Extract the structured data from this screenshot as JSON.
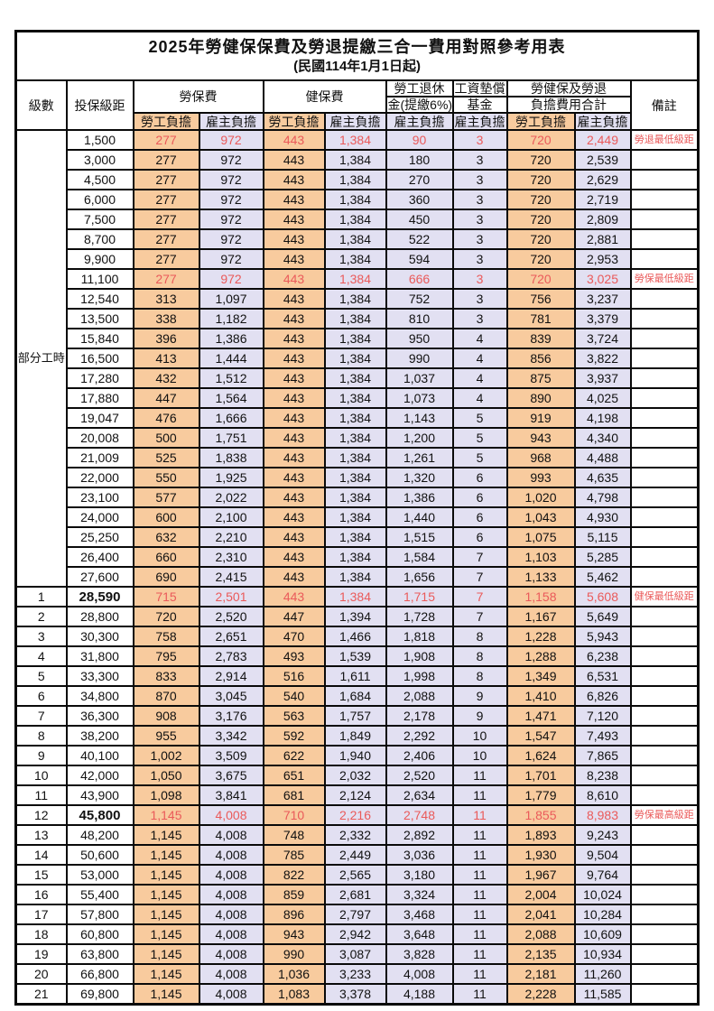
{
  "title": "2025年勞健保保費及勞退提繳三合一費用對照參考用表",
  "subtitle": "(民國114年1月1日起)",
  "colors": {
    "emp_bg": "#F8CB9E",
    "er_bg": "#E2E0F2",
    "red": "#EA5A5A",
    "border": "#0A0A0A"
  },
  "header": {
    "level": "級數",
    "bracket": "投保級距",
    "labor": "勞保費",
    "health": "健保費",
    "pension_line1": "勞工退休",
    "pension_line2": "金(提繳6%)",
    "wage_fund_line1": "工資墊償",
    "wage_fund_line2": "基金",
    "total_line1": "勞健保及勞退",
    "total_line2": "負擔費用合計",
    "employee": "勞工負擔",
    "employer": "雇主負擔",
    "note": "備註"
  },
  "part_time_label": "部分工時",
  "part_time_row_count": 23,
  "rows": [
    {
      "level": "",
      "bracket": "1,500",
      "v": [
        "277",
        "972",
        "443",
        "1,384",
        "90",
        "3",
        "720",
        "2,449"
      ],
      "note": "勞退最低級距",
      "red": true
    },
    {
      "level": "",
      "bracket": "3,000",
      "v": [
        "277",
        "972",
        "443",
        "1,384",
        "180",
        "3",
        "720",
        "2,539"
      ],
      "note": "",
      "red": false
    },
    {
      "level": "",
      "bracket": "4,500",
      "v": [
        "277",
        "972",
        "443",
        "1,384",
        "270",
        "3",
        "720",
        "2,629"
      ],
      "note": "",
      "red": false
    },
    {
      "level": "",
      "bracket": "6,000",
      "v": [
        "277",
        "972",
        "443",
        "1,384",
        "360",
        "3",
        "720",
        "2,719"
      ],
      "note": "",
      "red": false
    },
    {
      "level": "",
      "bracket": "7,500",
      "v": [
        "277",
        "972",
        "443",
        "1,384",
        "450",
        "3",
        "720",
        "2,809"
      ],
      "note": "",
      "red": false
    },
    {
      "level": "",
      "bracket": "8,700",
      "v": [
        "277",
        "972",
        "443",
        "1,384",
        "522",
        "3",
        "720",
        "2,881"
      ],
      "note": "",
      "red": false
    },
    {
      "level": "",
      "bracket": "9,900",
      "v": [
        "277",
        "972",
        "443",
        "1,384",
        "594",
        "3",
        "720",
        "2,953"
      ],
      "note": "",
      "red": false
    },
    {
      "level": "",
      "bracket": "11,100",
      "v": [
        "277",
        "972",
        "443",
        "1,384",
        "666",
        "3",
        "720",
        "3,025"
      ],
      "note": "勞保最低級距",
      "red": true
    },
    {
      "level": "",
      "bracket": "12,540",
      "v": [
        "313",
        "1,097",
        "443",
        "1,384",
        "752",
        "3",
        "756",
        "3,237"
      ],
      "note": "",
      "red": false
    },
    {
      "level": "",
      "bracket": "13,500",
      "v": [
        "338",
        "1,182",
        "443",
        "1,384",
        "810",
        "3",
        "781",
        "3,379"
      ],
      "note": "",
      "red": false
    },
    {
      "level": "",
      "bracket": "15,840",
      "v": [
        "396",
        "1,386",
        "443",
        "1,384",
        "950",
        "4",
        "839",
        "3,724"
      ],
      "note": "",
      "red": false
    },
    {
      "level": "",
      "bracket": "16,500",
      "v": [
        "413",
        "1,444",
        "443",
        "1,384",
        "990",
        "4",
        "856",
        "3,822"
      ],
      "note": "",
      "red": false
    },
    {
      "level": "",
      "bracket": "17,280",
      "v": [
        "432",
        "1,512",
        "443",
        "1,384",
        "1,037",
        "4",
        "875",
        "3,937"
      ],
      "note": "",
      "red": false
    },
    {
      "level": "",
      "bracket": "17,880",
      "v": [
        "447",
        "1,564",
        "443",
        "1,384",
        "1,073",
        "4",
        "890",
        "4,025"
      ],
      "note": "",
      "red": false
    },
    {
      "level": "",
      "bracket": "19,047",
      "v": [
        "476",
        "1,666",
        "443",
        "1,384",
        "1,143",
        "5",
        "919",
        "4,198"
      ],
      "note": "",
      "red": false
    },
    {
      "level": "",
      "bracket": "20,008",
      "v": [
        "500",
        "1,751",
        "443",
        "1,384",
        "1,200",
        "5",
        "943",
        "4,340"
      ],
      "note": "",
      "red": false
    },
    {
      "level": "",
      "bracket": "21,009",
      "v": [
        "525",
        "1,838",
        "443",
        "1,384",
        "1,261",
        "5",
        "968",
        "4,488"
      ],
      "note": "",
      "red": false
    },
    {
      "level": "",
      "bracket": "22,000",
      "v": [
        "550",
        "1,925",
        "443",
        "1,384",
        "1,320",
        "6",
        "993",
        "4,635"
      ],
      "note": "",
      "red": false
    },
    {
      "level": "",
      "bracket": "23,100",
      "v": [
        "577",
        "2,022",
        "443",
        "1,384",
        "1,386",
        "6",
        "1,020",
        "4,798"
      ],
      "note": "",
      "red": false
    },
    {
      "level": "",
      "bracket": "24,000",
      "v": [
        "600",
        "2,100",
        "443",
        "1,384",
        "1,440",
        "6",
        "1,043",
        "4,930"
      ],
      "note": "",
      "red": false
    },
    {
      "level": "",
      "bracket": "25,250",
      "v": [
        "632",
        "2,210",
        "443",
        "1,384",
        "1,515",
        "6",
        "1,075",
        "5,115"
      ],
      "note": "",
      "red": false
    },
    {
      "level": "",
      "bracket": "26,400",
      "v": [
        "660",
        "2,310",
        "443",
        "1,384",
        "1,584",
        "7",
        "1,103",
        "5,285"
      ],
      "note": "",
      "red": false
    },
    {
      "level": "",
      "bracket": "27,600",
      "v": [
        "690",
        "2,415",
        "443",
        "1,384",
        "1,656",
        "7",
        "1,133",
        "5,462"
      ],
      "note": "",
      "red": false
    },
    {
      "level": "1",
      "bracket": "28,590",
      "v": [
        "715",
        "2,501",
        "443",
        "1,384",
        "1,715",
        "7",
        "1,158",
        "5,608"
      ],
      "note": "健保最低級距",
      "red": true,
      "em": true
    },
    {
      "level": "2",
      "bracket": "28,800",
      "v": [
        "720",
        "2,520",
        "447",
        "1,394",
        "1,728",
        "7",
        "1,167",
        "5,649"
      ],
      "note": "",
      "red": false
    },
    {
      "level": "3",
      "bracket": "30,300",
      "v": [
        "758",
        "2,651",
        "470",
        "1,466",
        "1,818",
        "8",
        "1,228",
        "5,943"
      ],
      "note": "",
      "red": false
    },
    {
      "level": "4",
      "bracket": "31,800",
      "v": [
        "795",
        "2,783",
        "493",
        "1,539",
        "1,908",
        "8",
        "1,288",
        "6,238"
      ],
      "note": "",
      "red": false
    },
    {
      "level": "5",
      "bracket": "33,300",
      "v": [
        "833",
        "2,914",
        "516",
        "1,611",
        "1,998",
        "8",
        "1,349",
        "6,531"
      ],
      "note": "",
      "red": false
    },
    {
      "level": "6",
      "bracket": "34,800",
      "v": [
        "870",
        "3,045",
        "540",
        "1,684",
        "2,088",
        "9",
        "1,410",
        "6,826"
      ],
      "note": "",
      "red": false
    },
    {
      "level": "7",
      "bracket": "36,300",
      "v": [
        "908",
        "3,176",
        "563",
        "1,757",
        "2,178",
        "9",
        "1,471",
        "7,120"
      ],
      "note": "",
      "red": false
    },
    {
      "level": "8",
      "bracket": "38,200",
      "v": [
        "955",
        "3,342",
        "592",
        "1,849",
        "2,292",
        "10",
        "1,547",
        "7,493"
      ],
      "note": "",
      "red": false
    },
    {
      "level": "9",
      "bracket": "40,100",
      "v": [
        "1,002",
        "3,509",
        "622",
        "1,940",
        "2,406",
        "10",
        "1,624",
        "7,865"
      ],
      "note": "",
      "red": false
    },
    {
      "level": "10",
      "bracket": "42,000",
      "v": [
        "1,050",
        "3,675",
        "651",
        "2,032",
        "2,520",
        "11",
        "1,701",
        "8,238"
      ],
      "note": "",
      "red": false
    },
    {
      "level": "11",
      "bracket": "43,900",
      "v": [
        "1,098",
        "3,841",
        "681",
        "2,124",
        "2,634",
        "11",
        "1,779",
        "8,610"
      ],
      "note": "",
      "red": false
    },
    {
      "level": "12",
      "bracket": "45,800",
      "v": [
        "1,145",
        "4,008",
        "710",
        "2,216",
        "2,748",
        "11",
        "1,855",
        "8,983"
      ],
      "note": "勞保最高級距",
      "red": true,
      "em": true
    },
    {
      "level": "13",
      "bracket": "48,200",
      "v": [
        "1,145",
        "4,008",
        "748",
        "2,332",
        "2,892",
        "11",
        "1,893",
        "9,243"
      ],
      "note": "",
      "red": false
    },
    {
      "level": "14",
      "bracket": "50,600",
      "v": [
        "1,145",
        "4,008",
        "785",
        "2,449",
        "3,036",
        "11",
        "1,930",
        "9,504"
      ],
      "note": "",
      "red": false
    },
    {
      "level": "15",
      "bracket": "53,000",
      "v": [
        "1,145",
        "4,008",
        "822",
        "2,565",
        "3,180",
        "11",
        "1,967",
        "9,764"
      ],
      "note": "",
      "red": false
    },
    {
      "level": "16",
      "bracket": "55,400",
      "v": [
        "1,145",
        "4,008",
        "859",
        "2,681",
        "3,324",
        "11",
        "2,004",
        "10,024"
      ],
      "note": "",
      "red": false
    },
    {
      "level": "17",
      "bracket": "57,800",
      "v": [
        "1,145",
        "4,008",
        "896",
        "2,797",
        "3,468",
        "11",
        "2,041",
        "10,284"
      ],
      "note": "",
      "red": false
    },
    {
      "level": "18",
      "bracket": "60,800",
      "v": [
        "1,145",
        "4,008",
        "943",
        "2,942",
        "3,648",
        "11",
        "2,088",
        "10,609"
      ],
      "note": "",
      "red": false
    },
    {
      "level": "19",
      "bracket": "63,800",
      "v": [
        "1,145",
        "4,008",
        "990",
        "3,087",
        "3,828",
        "11",
        "2,135",
        "10,934"
      ],
      "note": "",
      "red": false
    },
    {
      "level": "20",
      "bracket": "66,800",
      "v": [
        "1,145",
        "4,008",
        "1,036",
        "3,233",
        "4,008",
        "11",
        "2,181",
        "11,260"
      ],
      "note": "",
      "red": false
    },
    {
      "level": "21",
      "bracket": "69,800",
      "v": [
        "1,145",
        "4,008",
        "1,083",
        "3,378",
        "4,188",
        "11",
        "2,228",
        "11,585"
      ],
      "note": "",
      "red": false
    }
  ]
}
